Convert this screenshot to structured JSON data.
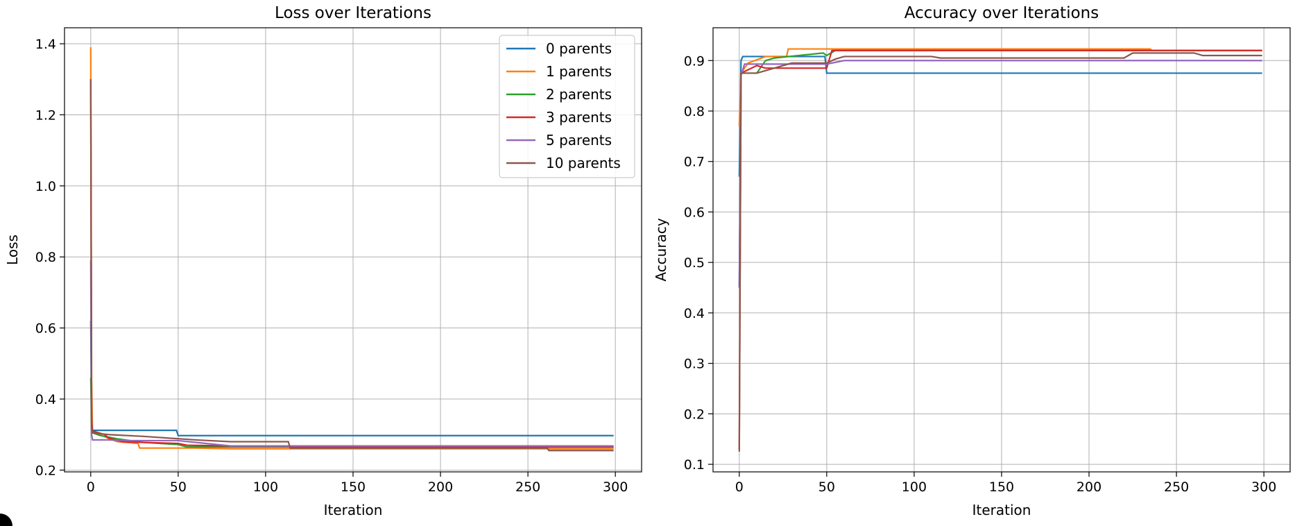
{
  "chart_data": [
    {
      "type": "line",
      "title": "Loss over Iterations",
      "xlabel": "Iteration",
      "ylabel": "Loss",
      "xlim": [
        -15,
        315
      ],
      "ylim": [
        0.195,
        1.445
      ],
      "xticks": [
        0,
        50,
        100,
        150,
        200,
        250,
        300
      ],
      "yticks": [
        0.2,
        0.4,
        0.6,
        0.8,
        1.0,
        1.2,
        1.4
      ],
      "xtick_labels": [
        "0",
        "50",
        "100",
        "150",
        "200",
        "250",
        "300"
      ],
      "ytick_labels": [
        "0.2",
        "0.4",
        "0.6",
        "0.8",
        "1.0",
        "1.2",
        "1.4"
      ],
      "grid": true,
      "legend_position": "top-right",
      "series": [
        {
          "name": "0 parents",
          "color": "#1f77b4",
          "x": [
            0,
            0.5,
            1,
            2,
            49,
            50,
            299
          ],
          "y": [
            0.62,
            0.33,
            0.312,
            0.312,
            0.312,
            0.297,
            0.297
          ]
        },
        {
          "name": "1 parents",
          "color": "#ff7f0e",
          "x": [
            0,
            0.5,
            1,
            5,
            10,
            15,
            27,
            28,
            49,
            50,
            60,
            80,
            299
          ],
          "y": [
            1.39,
            0.45,
            0.305,
            0.3,
            0.29,
            0.28,
            0.275,
            0.262,
            0.262,
            0.262,
            0.262,
            0.26,
            0.26
          ]
        },
        {
          "name": "2 parents",
          "color": "#2ca02c",
          "x": [
            0,
            0.5,
            1,
            5,
            15,
            30,
            50,
            55,
            299
          ],
          "y": [
            0.46,
            0.32,
            0.305,
            0.298,
            0.288,
            0.278,
            0.272,
            0.265,
            0.265
          ]
        },
        {
          "name": "3 parents",
          "color": "#d62728",
          "x": [
            0,
            0.5,
            1,
            8,
            10,
            18,
            30,
            50,
            55,
            80,
            113,
            114,
            261,
            262,
            299
          ],
          "y": [
            1.3,
            0.34,
            0.31,
            0.3,
            0.29,
            0.28,
            0.278,
            0.275,
            0.27,
            0.268,
            0.268,
            0.265,
            0.265,
            0.265,
            0.265
          ]
        },
        {
          "name": "5 parents",
          "color": "#9467bd",
          "x": [
            0,
            0.5,
            1,
            10,
            20,
            50,
            60,
            80,
            299
          ],
          "y": [
            0.79,
            0.3,
            0.285,
            0.285,
            0.283,
            0.283,
            0.278,
            0.268,
            0.268
          ]
        },
        {
          "name": "10 parents",
          "color": "#8c564b",
          "x": [
            0,
            0.5,
            1,
            10,
            30,
            60,
            80,
            113,
            114,
            261,
            262,
            299
          ],
          "y": [
            1.3,
            0.32,
            0.305,
            0.3,
            0.295,
            0.285,
            0.28,
            0.28,
            0.262,
            0.262,
            0.255,
            0.255
          ]
        }
      ]
    },
    {
      "type": "line",
      "title": "Accuracy over Iterations",
      "xlabel": "Iteration",
      "ylabel": "Accuracy",
      "xlim": [
        -15,
        315
      ],
      "ylim": [
        0.085,
        0.965
      ],
      "xticks": [
        0,
        50,
        100,
        150,
        200,
        250,
        300
      ],
      "yticks": [
        0.1,
        0.2,
        0.3,
        0.4,
        0.5,
        0.6,
        0.7,
        0.8,
        0.9
      ],
      "xtick_labels": [
        "0",
        "50",
        "100",
        "150",
        "200",
        "250",
        "300"
      ],
      "ytick_labels": [
        "0.1",
        "0.2",
        "0.3",
        "0.4",
        "0.5",
        "0.6",
        "0.7",
        "0.8",
        "0.9"
      ],
      "grid": true,
      "series": [
        {
          "name": "0 parents",
          "color": "#1f77b4",
          "x": [
            0,
            1,
            2,
            49,
            50,
            299
          ],
          "y": [
            0.67,
            0.9,
            0.908,
            0.908,
            0.875,
            0.875
          ]
        },
        {
          "name": "1 parents",
          "color": "#ff7f0e",
          "x": [
            0,
            1,
            5,
            15,
            27,
            28,
            235,
            236,
            299
          ],
          "y": [
            0.77,
            0.875,
            0.895,
            0.908,
            0.908,
            0.923,
            0.923,
            0.92,
            0.92
          ]
        },
        {
          "name": "2 parents",
          "color": "#2ca02c",
          "x": [
            0,
            1,
            10,
            15,
            20,
            48,
            50,
            55,
            299
          ],
          "y": [
            0.45,
            0.875,
            0.875,
            0.9,
            0.905,
            0.915,
            0.91,
            0.92,
            0.92
          ]
        },
        {
          "name": "3 parents",
          "color": "#d62728",
          "x": [
            0,
            1,
            10,
            15,
            30,
            50,
            53,
            299
          ],
          "y": [
            0.13,
            0.875,
            0.89,
            0.885,
            0.885,
            0.885,
            0.92,
            0.92
          ]
        },
        {
          "name": "5 parents",
          "color": "#9467bd",
          "x": [
            0,
            1,
            3,
            50,
            60,
            299
          ],
          "y": [
            0.45,
            0.87,
            0.893,
            0.893,
            0.9,
            0.9
          ]
        },
        {
          "name": "10 parents",
          "color": "#8c564b",
          "x": [
            0,
            1,
            10,
            15,
            30,
            50,
            55,
            60,
            110,
            115,
            220,
            225,
            260,
            265,
            299
          ],
          "y": [
            0.125,
            0.875,
            0.875,
            0.88,
            0.895,
            0.895,
            0.903,
            0.908,
            0.908,
            0.905,
            0.905,
            0.915,
            0.915,
            0.91,
            0.91
          ]
        }
      ]
    }
  ]
}
